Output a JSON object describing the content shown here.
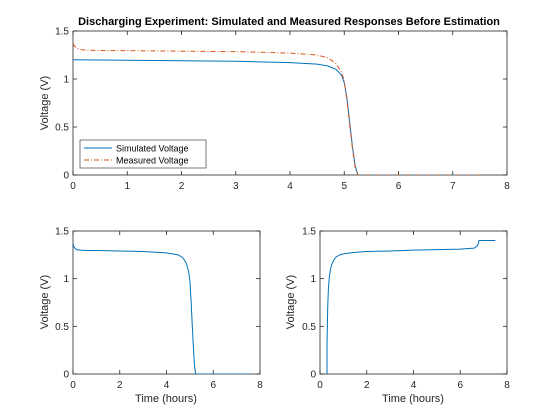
{
  "chart_data": [
    {
      "type": "line",
      "title": "Discharging Experiment: Simulated and Measured Responses Before Estimation",
      "xlabel": "",
      "ylabel": "Voltage (V)",
      "xlim": [
        0,
        8
      ],
      "ylim": [
        0,
        1.5
      ],
      "xticks": [
        0,
        1,
        2,
        3,
        4,
        5,
        6,
        7,
        8
      ],
      "yticks": [
        0,
        0.5,
        1,
        1.5
      ],
      "grid": false,
      "legend": "bottom-left",
      "series": [
        {
          "name": "Simulated Voltage",
          "color": "#0072bd",
          "style": "solid",
          "x": [
            0,
            1,
            2,
            3,
            4,
            4.5,
            4.7,
            4.85,
            4.95,
            5.0,
            5.05,
            5.1,
            5.15,
            5.2,
            5.25,
            5.3,
            6,
            7,
            7.5
          ],
          "y": [
            1.2,
            1.195,
            1.19,
            1.185,
            1.17,
            1.155,
            1.135,
            1.1,
            1.04,
            0.96,
            0.8,
            0.55,
            0.3,
            0.1,
            0.0,
            0.0,
            0.0,
            0.0,
            0.0
          ]
        },
        {
          "name": "Measured Voltage",
          "color": "#d95319",
          "style": "dashdot",
          "x": [
            0,
            0.03,
            0.08,
            0.15,
            0.3,
            0.6,
            1,
            2,
            3,
            4,
            4.5,
            4.7,
            4.85,
            4.95,
            5.0,
            5.05,
            5.1,
            5.15,
            5.2,
            5.25,
            5.3,
            6,
            7,
            7.5
          ],
          "y": [
            1.37,
            1.34,
            1.32,
            1.305,
            1.3,
            1.295,
            1.295,
            1.29,
            1.285,
            1.27,
            1.25,
            1.22,
            1.16,
            1.07,
            0.98,
            0.78,
            0.52,
            0.28,
            0.08,
            0.0,
            0.0,
            0.0,
            0.0,
            0.0
          ]
        }
      ],
      "legend_entries": [
        "Simulated Voltage",
        "Measured Voltage"
      ]
    },
    {
      "type": "line",
      "title": "",
      "xlabel": "Time (hours)",
      "ylabel": "Voltage (V)",
      "xlim": [
        0,
        8
      ],
      "ylim": [
        0,
        1.5
      ],
      "xticks": [
        0,
        2,
        4,
        6,
        8
      ],
      "yticks": [
        0,
        0.5,
        1,
        1.5
      ],
      "grid": false,
      "series": [
        {
          "color": "#0072bd",
          "style": "solid",
          "x": [
            0,
            0.03,
            0.08,
            0.15,
            0.3,
            0.6,
            1,
            2,
            3,
            4,
            4.5,
            4.7,
            4.85,
            4.95,
            5.0,
            5.05,
            5.1,
            5.15,
            5.2,
            5.25,
            5.3,
            6,
            7,
            7.6
          ],
          "y": [
            1.37,
            1.34,
            1.32,
            1.305,
            1.3,
            1.295,
            1.295,
            1.29,
            1.285,
            1.27,
            1.25,
            1.22,
            1.16,
            1.07,
            0.98,
            0.78,
            0.52,
            0.28,
            0.08,
            0.0,
            0.0,
            0.0,
            0.0,
            0.0
          ]
        }
      ]
    },
    {
      "type": "line",
      "title": "",
      "xlabel": "Time (hours)",
      "ylabel": "Voltage (V)",
      "xlim": [
        0,
        8
      ],
      "ylim": [
        0,
        1.5
      ],
      "xticks": [
        0,
        2,
        4,
        6,
        8
      ],
      "yticks": [
        0,
        0.5,
        1,
        1.5
      ],
      "grid": false,
      "series": [
        {
          "color": "#0072bd",
          "style": "solid",
          "x": [
            0.3,
            0.3,
            0.33,
            0.36,
            0.4,
            0.45,
            0.5,
            0.6,
            0.7,
            0.85,
            1,
            1.3,
            1.7,
            2,
            3,
            4,
            5,
            6,
            6.6,
            6.75,
            6.8,
            7.0,
            7.5
          ],
          "y": [
            0.0,
            0.3,
            0.7,
            0.9,
            1.02,
            1.1,
            1.15,
            1.2,
            1.23,
            1.25,
            1.26,
            1.27,
            1.28,
            1.285,
            1.29,
            1.3,
            1.305,
            1.31,
            1.32,
            1.35,
            1.4,
            1.4,
            1.4
          ]
        }
      ]
    }
  ]
}
